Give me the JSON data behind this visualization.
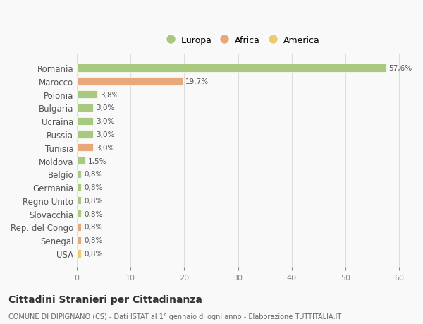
{
  "categories": [
    "Romania",
    "Marocco",
    "Polonia",
    "Bulgaria",
    "Ucraina",
    "Russia",
    "Tunisia",
    "Moldova",
    "Belgio",
    "Germania",
    "Regno Unito",
    "Slovacchia",
    "Rep. del Congo",
    "Senegal",
    "USA"
  ],
  "values": [
    57.6,
    19.7,
    3.8,
    3.0,
    3.0,
    3.0,
    3.0,
    1.5,
    0.8,
    0.8,
    0.8,
    0.8,
    0.8,
    0.8,
    0.8
  ],
  "labels": [
    "57,6%",
    "19,7%",
    "3,8%",
    "3,0%",
    "3,0%",
    "3,0%",
    "3,0%",
    "1,5%",
    "0,8%",
    "0,8%",
    "0,8%",
    "0,8%",
    "0,8%",
    "0,8%",
    "0,8%"
  ],
  "colors": [
    "#a8c97f",
    "#e8a87c",
    "#a8c97f",
    "#a8c97f",
    "#a8c97f",
    "#a8c97f",
    "#e8a87c",
    "#a8c97f",
    "#a8c97f",
    "#a8c97f",
    "#a8c97f",
    "#a8c97f",
    "#e8a87c",
    "#e8a87c",
    "#f0c96e"
  ],
  "legend": [
    {
      "label": "Europa",
      "color": "#a8c97f"
    },
    {
      "label": "Africa",
      "color": "#e8a87c"
    },
    {
      "label": "America",
      "color": "#f0c96e"
    }
  ],
  "xlim": [
    0,
    62
  ],
  "xticks": [
    0,
    10,
    20,
    30,
    40,
    50,
    60
  ],
  "title": "Cittadini Stranieri per Cittadinanza",
  "subtitle": "COMUNE DI DIPIGNANO (CS) - Dati ISTAT al 1° gennaio di ogni anno - Elaborazione TUTTITALIA.IT",
  "background_color": "#f9f9f9",
  "grid_color": "#dddddd"
}
